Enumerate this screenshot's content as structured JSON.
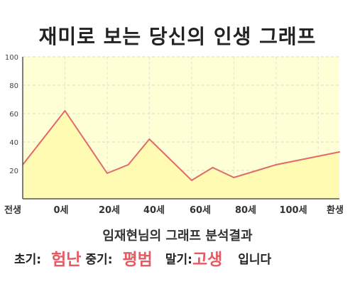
{
  "page": {
    "title": "재미로 보는 당신의 인생 그래프",
    "summary": "임재현님의 그래프 분석결과",
    "result": {
      "early_label": "초기:",
      "early_value": "험난",
      "mid_label": "중기:",
      "mid_value": "평범",
      "late_label": "말기:",
      "late_value": "고생",
      "suffix": "입니다"
    },
    "colors": {
      "plot_bg": "#ffffd5",
      "line": "#e06a6a",
      "fill": "#fffbb0",
      "highlight": "#e85a63"
    }
  },
  "chart_data": {
    "type": "area",
    "title": "",
    "xlabel": "",
    "ylabel": "",
    "ylim": [
      0,
      100
    ],
    "yticks": [
      20,
      40,
      60,
      80,
      100
    ],
    "xtick_labels": [
      "전생",
      "0세",
      "20세",
      "40세",
      "60세",
      "80세",
      "100세",
      "환생"
    ],
    "grid": true,
    "series": [
      {
        "x": [
          "전생",
          "0세",
          "20세",
          "30세",
          "40세",
          "60세",
          "70세",
          "80세",
          "100세",
          "환생"
        ],
        "values": [
          24,
          62,
          18,
          24,
          42,
          13,
          22,
          15,
          24,
          33
        ]
      }
    ]
  }
}
